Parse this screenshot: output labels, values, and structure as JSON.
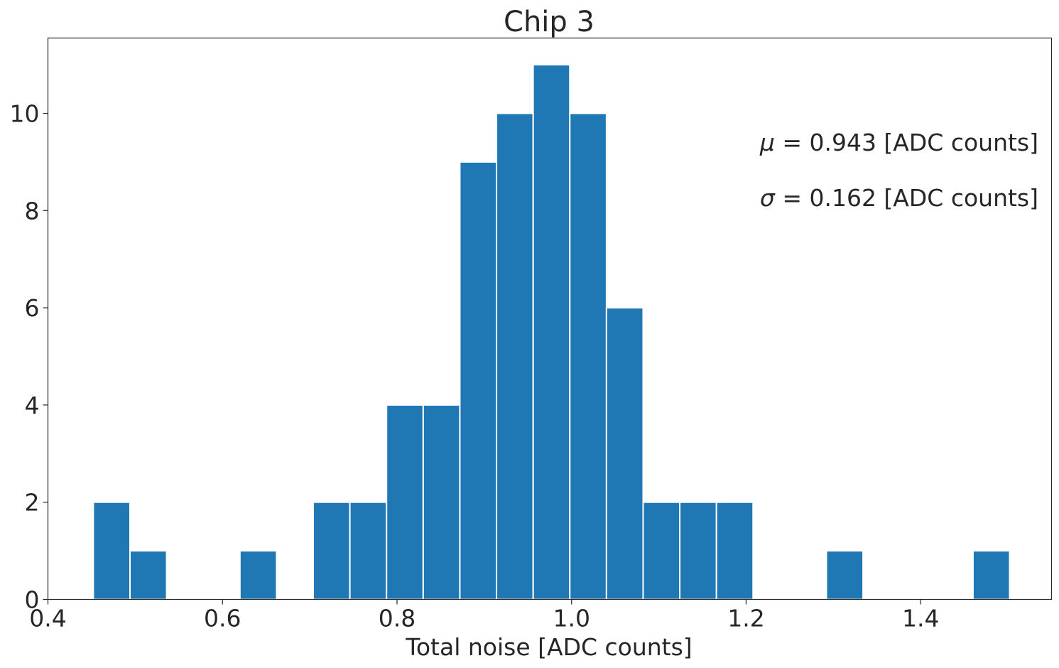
{
  "chart_data": {
    "type": "bar",
    "subtype": "histogram",
    "title": "Chip 3",
    "xlabel": "Total noise [ADC counts]",
    "ylabel": "",
    "xlim": [
      0.4,
      1.55
    ],
    "ylim": [
      0,
      11.55
    ],
    "x_ticks": [
      0.4,
      0.6,
      0.8,
      1.0,
      1.2,
      1.4
    ],
    "x_tick_labels": [
      "0.4",
      "0.6",
      "0.8",
      "1.0",
      "1.2",
      "1.4"
    ],
    "y_ticks": [
      0,
      2,
      4,
      6,
      8,
      10
    ],
    "y_tick_labels": [
      "0",
      "2",
      "4",
      "6",
      "8",
      "10"
    ],
    "bin_start": 0.452,
    "bin_width": 0.042,
    "values": [
      2,
      1,
      0,
      0,
      1,
      0,
      2,
      2,
      4,
      4,
      9,
      10,
      11,
      10,
      6,
      2,
      2,
      2,
      0,
      0,
      1,
      0,
      0,
      0,
      1
    ],
    "bar_color": "#1f77b4",
    "edge_color": "#ffffff",
    "grid": false,
    "annotations": [
      {
        "symbol": "μ",
        "text": " = 0.943 [ADC counts]"
      },
      {
        "symbol": "σ",
        "text": " = 0.162 [ADC counts]"
      }
    ]
  }
}
